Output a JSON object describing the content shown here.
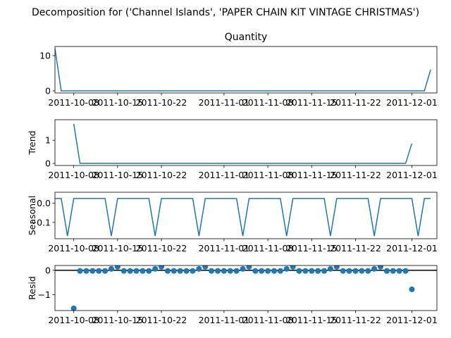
{
  "figure": {
    "title": "Decomposition for ('Channel Islands', 'PAPER CHAIN KIT VINTAGE CHRISTMAS')"
  },
  "colors": {
    "series": "#1f77b4",
    "axis": "#000000",
    "zero_line": "#000000"
  },
  "x_tick_labels": [
    "2011-10-08",
    "2011-10-15",
    "2011-10-22",
    "2011-11-01",
    "2011-11-08",
    "2011-11-15",
    "2011-11-22",
    "2011-12-01"
  ],
  "chart_data": [
    {
      "type": "line",
      "name": "observed",
      "title": "Quantity",
      "ylabel": "",
      "x_start": "2011-10-05",
      "x_step_days": 1,
      "x_ticks": [
        "2011-10-08",
        "2011-10-15",
        "2011-10-22",
        "2011-11-01",
        "2011-11-08",
        "2011-11-15",
        "2011-11-22",
        "2011-12-01"
      ],
      "xlim": [
        "2011-10-05",
        "2011-12-05"
      ],
      "ylim": [
        -0.6,
        12.6
      ],
      "y_ticks": [
        0,
        10
      ],
      "values": [
        12,
        0,
        0,
        0,
        0,
        0,
        0,
        0,
        0,
        0,
        0,
        0,
        0,
        0,
        0,
        0,
        0,
        0,
        0,
        0,
        0,
        0,
        0,
        0,
        0,
        0,
        0,
        0,
        0,
        0,
        0,
        0,
        0,
        0,
        0,
        0,
        0,
        0,
        0,
        0,
        0,
        0,
        0,
        0,
        0,
        0,
        0,
        0,
        0,
        0,
        0,
        0,
        0,
        0,
        0,
        0,
        0,
        0,
        0,
        0,
        6
      ]
    },
    {
      "type": "line",
      "name": "trend",
      "title": "",
      "ylabel": "Trend",
      "x_start": "2011-10-08",
      "x_step_days": 1,
      "x_ticks": [
        "2011-10-08",
        "2011-10-15",
        "2011-10-22",
        "2011-11-01",
        "2011-11-08",
        "2011-11-15",
        "2011-11-22",
        "2011-12-01"
      ],
      "xlim": [
        "2011-10-05",
        "2011-12-05"
      ],
      "ylim": [
        -0.09,
        1.89
      ],
      "y_ticks": [
        0,
        1
      ],
      "values": [
        1.71,
        0,
        0,
        0,
        0,
        0,
        0,
        0,
        0,
        0,
        0,
        0,
        0,
        0,
        0,
        0,
        0,
        0,
        0,
        0,
        0,
        0,
        0,
        0,
        0,
        0,
        0,
        0,
        0,
        0,
        0,
        0,
        0,
        0,
        0,
        0,
        0,
        0,
        0,
        0,
        0,
        0,
        0,
        0,
        0,
        0,
        0,
        0,
        0,
        0,
        0,
        0,
        0,
        0,
        0.86
      ]
    },
    {
      "type": "line",
      "name": "seasonal",
      "title": "",
      "ylabel": "Seasonal",
      "x_start": "2011-10-05",
      "x_step_days": 1,
      "x_ticks": [
        "2011-10-08",
        "2011-10-15",
        "2011-10-22",
        "2011-11-01",
        "2011-11-08",
        "2011-11-15",
        "2011-11-22",
        "2011-12-01"
      ],
      "xlim": [
        "2011-10-05",
        "2011-12-05"
      ],
      "ylim": [
        -0.185,
        0.057
      ],
      "y_ticks": [
        0.0,
        -0.1
      ],
      "y_tick_labels": [
        "0.0",
        "−0.1"
      ],
      "values": [
        0.0245,
        0.0245,
        -0.171,
        0.0245,
        0.0245,
        0.0245,
        0.0245,
        0.0245,
        0.0245,
        -0.171,
        0.0245,
        0.0245,
        0.0245,
        0.0245,
        0.0245,
        0.0245,
        -0.171,
        0.0245,
        0.0245,
        0.0245,
        0.0245,
        0.0245,
        0.0245,
        -0.171,
        0.0245,
        0.0245,
        0.0245,
        0.0245,
        0.0245,
        0.0245,
        -0.171,
        0.0245,
        0.0245,
        0.0245,
        0.0245,
        0.0245,
        0.0245,
        -0.171,
        0.0245,
        0.0245,
        0.0245,
        0.0245,
        0.0245,
        0.0245,
        -0.171,
        0.0245,
        0.0245,
        0.0245,
        0.0245,
        0.0245,
        0.0245,
        -0.171,
        0.0245,
        0.0245,
        0.0245,
        0.0245,
        0.0245,
        0.0245,
        -0.171,
        0.0245,
        0.0245
      ]
    },
    {
      "type": "scatter",
      "name": "resid",
      "title": "",
      "ylabel": "Resid",
      "x_start": "2011-10-08",
      "x_step_days": 1,
      "x_ticks": [
        "2011-10-08",
        "2011-10-15",
        "2011-10-22",
        "2011-11-01",
        "2011-11-08",
        "2011-11-15",
        "2011-11-22",
        "2011-12-01"
      ],
      "xlim": [
        "2011-10-05",
        "2011-12-05"
      ],
      "ylim": [
        -1.65,
        0.2
      ],
      "y_ticks": [
        0,
        -1
      ],
      "y_tick_labels": [
        "0",
        "−1"
      ],
      "zero_line": true,
      "values": [
        -1.56,
        -0.024,
        -0.024,
        -0.024,
        -0.024,
        -0.024,
        0.06,
        0.147,
        -0.024,
        -0.024,
        -0.024,
        -0.024,
        -0.024,
        0.06,
        0.147,
        -0.024,
        -0.024,
        -0.024,
        -0.024,
        -0.024,
        0.06,
        0.147,
        -0.024,
        -0.024,
        -0.024,
        -0.024,
        -0.024,
        0.06,
        0.147,
        -0.024,
        -0.024,
        -0.024,
        -0.024,
        -0.024,
        0.06,
        0.147,
        -0.024,
        -0.024,
        -0.024,
        -0.024,
        -0.024,
        0.06,
        0.147,
        -0.024,
        -0.024,
        -0.024,
        -0.024,
        -0.024,
        0.06,
        0.147,
        -0.024,
        -0.024,
        -0.024,
        -0.024,
        -0.78
      ]
    }
  ]
}
